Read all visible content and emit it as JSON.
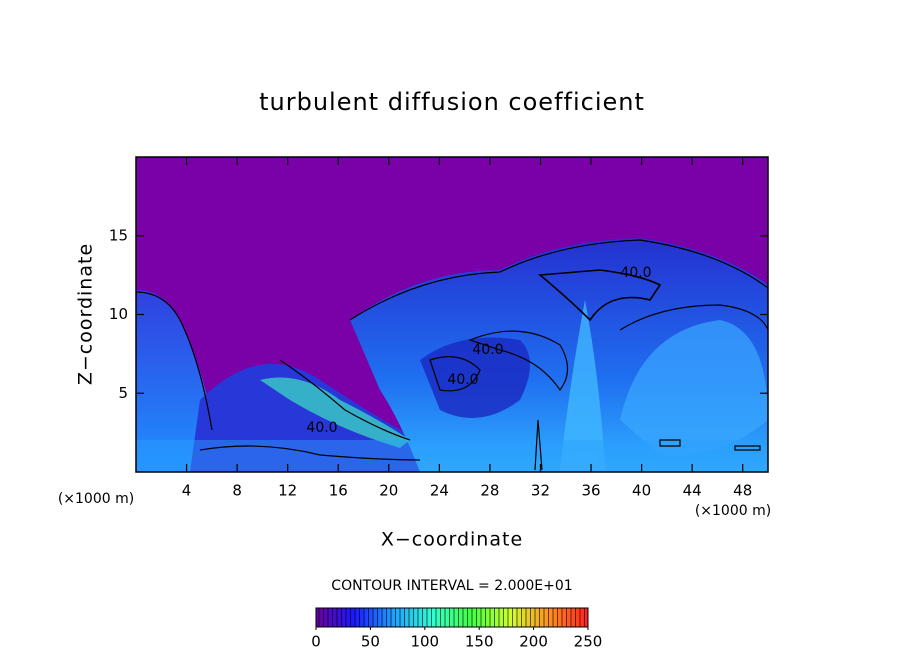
{
  "chart_data": {
    "type": "contour",
    "title": "turbulent diffusion coefficient",
    "xlabel": "X−coordinate",
    "ylabel": "Z−coordinate",
    "x_units": "(×1000 m)",
    "xlim": [
      0,
      50
    ],
    "xticks": [
      4,
      8,
      12,
      16,
      20,
      24,
      28,
      32,
      36,
      40,
      44,
      48
    ],
    "ylim": [
      0,
      20
    ],
    "yticks": [
      5,
      10,
      15
    ],
    "background_color": "#7a00a8",
    "contour_labels": [
      "40.0",
      "40.0",
      "40.0",
      "40.0"
    ],
    "contour_interval": "CONTOUR INTERVAL = 2.000E+01",
    "colorbar": {
      "lim": [
        0,
        250
      ],
      "ticks": [
        0,
        50,
        100,
        150,
        200,
        250
      ],
      "colors": [
        "#6a00a0",
        "#1a1aff",
        "#20a0ff",
        "#30ffd0",
        "#40ff40",
        "#d0ff30",
        "#ff9020",
        "#ff2020"
      ]
    }
  }
}
